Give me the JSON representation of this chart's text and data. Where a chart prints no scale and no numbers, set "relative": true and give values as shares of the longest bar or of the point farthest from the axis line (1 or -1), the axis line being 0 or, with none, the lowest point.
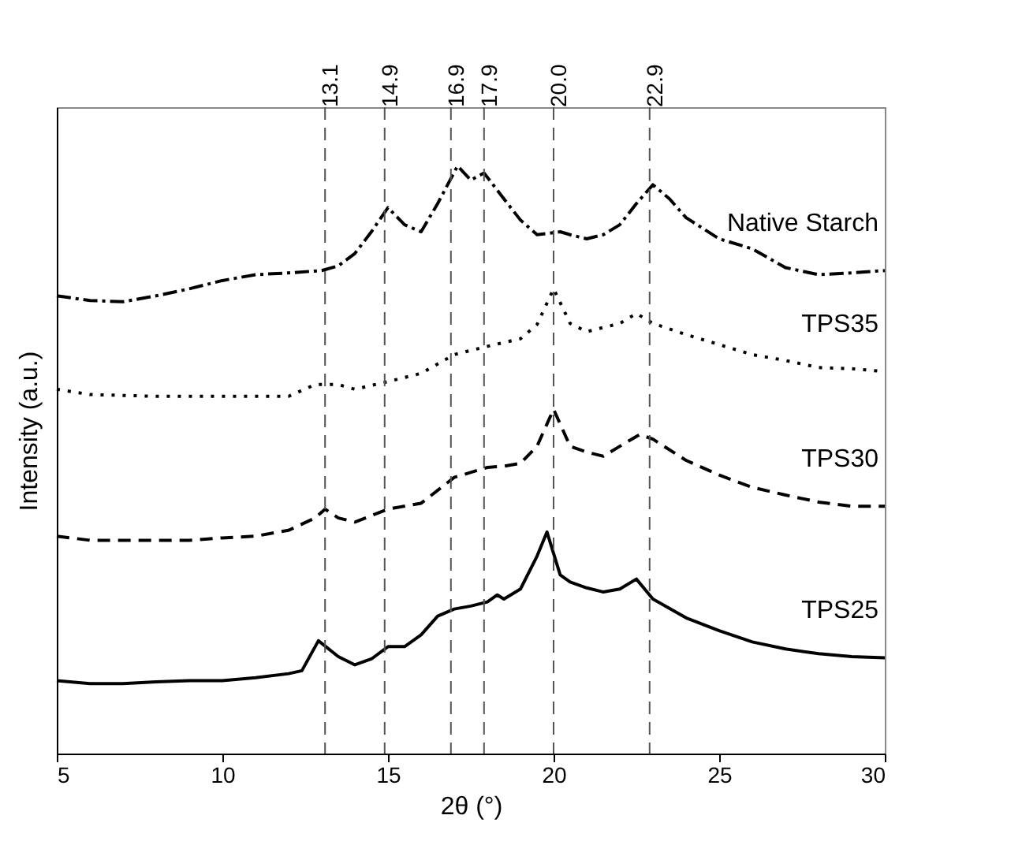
{
  "chart_data": {
    "type": "line",
    "xlabel": "2θ (°)",
    "ylabel": "Intensity (a.u.)",
    "relative": true,
    "xlim": [
      5,
      30
    ],
    "xticks": [
      5,
      10,
      15,
      20,
      25,
      30
    ],
    "grid": false,
    "marker": "none",
    "ref_lines": [
      {
        "axis": "x",
        "value": 13.1,
        "label": "13.1",
        "color": "#555555",
        "line_style": "dashed"
      },
      {
        "axis": "x",
        "value": 14.9,
        "label": "14.9",
        "color": "#555555",
        "line_style": "dashed"
      },
      {
        "axis": "x",
        "value": 16.9,
        "label": "16.9",
        "color": "#555555",
        "line_style": "dashed"
      },
      {
        "axis": "x",
        "value": 17.9,
        "label": "17.9",
        "color": "#555555",
        "line_style": "dashed"
      },
      {
        "axis": "x",
        "value": 20.0,
        "label": "20.0",
        "color": "#555555",
        "line_style": "dashed"
      },
      {
        "axis": "x",
        "value": 22.9,
        "label": "22.9",
        "color": "#555555",
        "line_style": "dashed"
      }
    ],
    "series": [
      {
        "name": "Native Starch",
        "color": "#000000",
        "line_style": "dashdot",
        "x": [
          5,
          6,
          7,
          8,
          9,
          10,
          11,
          12,
          13,
          13.5,
          14,
          14.5,
          15,
          15.5,
          16,
          16.5,
          17.1,
          17.5,
          17.9,
          18.5,
          19,
          19.5,
          20.2,
          20.5,
          21,
          21.5,
          22,
          22.5,
          23,
          23.5,
          24,
          25,
          26,
          27,
          28,
          29,
          30
        ],
        "values": [
          0.779,
          0.771,
          0.769,
          0.779,
          0.791,
          0.805,
          0.815,
          0.818,
          0.822,
          0.83,
          0.851,
          0.888,
          0.929,
          0.9,
          0.888,
          0.936,
          1.0,
          0.976,
          0.988,
          0.944,
          0.908,
          0.883,
          0.888,
          0.883,
          0.876,
          0.883,
          0.9,
          0.936,
          0.968,
          0.944,
          0.912,
          0.876,
          0.859,
          0.827,
          0.815,
          0.818,
          0.822
        ]
      },
      {
        "name": "TPS35",
        "color": "#000000",
        "line_style": "dotted",
        "x": [
          5,
          6,
          8,
          10,
          12,
          12.8,
          13.5,
          14,
          15,
          16,
          17,
          18,
          19,
          19.5,
          20,
          20.5,
          21,
          22,
          22.5,
          23,
          24,
          25,
          26,
          27,
          28,
          29,
          30
        ],
        "values": [
          0.62,
          0.611,
          0.608,
          0.608,
          0.608,
          0.628,
          0.628,
          0.62,
          0.633,
          0.647,
          0.679,
          0.693,
          0.706,
          0.73,
          0.791,
          0.732,
          0.718,
          0.732,
          0.749,
          0.732,
          0.713,
          0.696,
          0.679,
          0.669,
          0.657,
          0.655,
          0.65
        ]
      },
      {
        "name": "TPS30",
        "color": "#000000",
        "line_style": "dashed",
        "x": [
          5,
          6,
          7,
          8,
          9,
          10,
          11,
          12,
          12.8,
          13.1,
          13.5,
          14,
          15,
          16,
          17,
          18,
          18.5,
          19,
          19.5,
          20,
          20.5,
          21,
          21.5,
          22,
          22.6,
          23,
          24,
          25,
          26,
          27,
          28,
          29,
          30
        ],
        "values": [
          0.37,
          0.363,
          0.363,
          0.363,
          0.363,
          0.367,
          0.37,
          0.38,
          0.401,
          0.416,
          0.401,
          0.394,
          0.416,
          0.426,
          0.47,
          0.487,
          0.489,
          0.494,
          0.523,
          0.586,
          0.523,
          0.513,
          0.506,
          0.523,
          0.543,
          0.535,
          0.499,
          0.474,
          0.453,
          0.44,
          0.428,
          0.421,
          0.421
        ]
      },
      {
        "name": "TPS25",
        "color": "#000000",
        "line_style": "solid",
        "x": [
          5,
          6,
          7,
          8,
          9,
          10,
          11,
          12,
          12.4,
          12.9,
          13.5,
          14,
          14.5,
          15,
          15.5,
          16,
          16.5,
          17,
          17.5,
          18,
          18.3,
          18.5,
          19,
          19.5,
          19.8,
          20.2,
          20.5,
          21,
          21.5,
          22,
          22.5,
          23,
          24,
          25,
          26,
          27,
          28,
          29,
          30
        ],
        "values": [
          0.124,
          0.119,
          0.119,
          0.122,
          0.124,
          0.124,
          0.129,
          0.136,
          0.141,
          0.192,
          0.165,
          0.151,
          0.161,
          0.182,
          0.182,
          0.202,
          0.234,
          0.246,
          0.251,
          0.258,
          0.27,
          0.263,
          0.28,
          0.336,
          0.377,
          0.304,
          0.292,
          0.282,
          0.275,
          0.28,
          0.297,
          0.263,
          0.231,
          0.209,
          0.19,
          0.178,
          0.17,
          0.165,
          0.163
        ]
      }
    ]
  }
}
